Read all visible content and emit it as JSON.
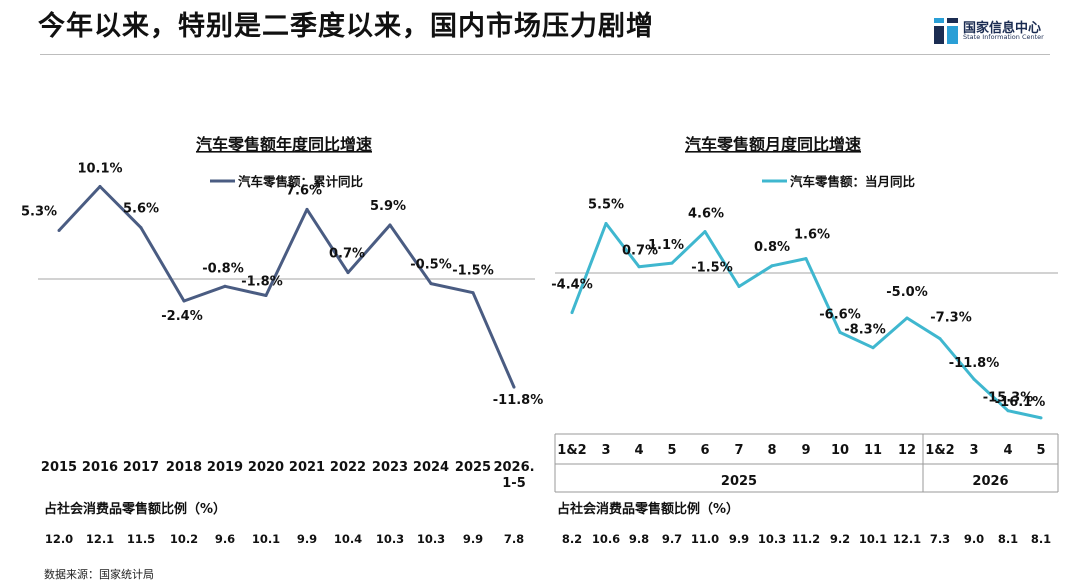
{
  "header": {
    "headline": "今年以来，特别是二季度以来，国内市场压力剧增",
    "logo_cn": "国家信息中心",
    "logo_en": "State Information Center"
  },
  "source_note": "数据来源：国家统计局",
  "colors": {
    "annual_line": "#4a5c82",
    "monthly_line": "#3fb7cf",
    "zero_line": "#a6a6a6"
  },
  "chart_data": [
    {
      "type": "line",
      "title": "汽车零售额年度同比增速",
      "series": [
        {
          "name": "汽车零售额：累计同比",
          "values": [
            5.3,
            10.1,
            5.6,
            -2.4,
            -0.8,
            -1.8,
            7.6,
            0.7,
            5.9,
            -0.5,
            -1.5,
            -11.8
          ]
        }
      ],
      "value_labels": [
        "5.3%",
        "10.1%",
        "5.6%",
        "-2.4%",
        "-0.8%",
        "-1.8%",
        "7.6%",
        "0.7%",
        "5.9%",
        "-0.5%",
        "-1.5%",
        "-11.8%"
      ],
      "categories": [
        "2015",
        "2016",
        "2017",
        "2018",
        "2019",
        "2020",
        "2021",
        "2022",
        "2023",
        "2024",
        "2025",
        "2026.\n1-5"
      ],
      "share_row_label": "占社会消费品零售额比例（%）",
      "share_values": [
        "12.0",
        "12.1",
        "11.5",
        "10.2",
        "9.6",
        "10.1",
        "9.9",
        "10.4",
        "10.3",
        "10.3",
        "9.9",
        "7.8"
      ],
      "legend_position": "top-center",
      "zero_line": true
    },
    {
      "type": "line",
      "title": "汽车零售额月度同比增速",
      "series": [
        {
          "name": "汽车零售额：当月同比",
          "values": [
            -4.4,
            5.5,
            0.7,
            1.1,
            4.6,
            -1.5,
            0.8,
            1.6,
            -6.6,
            -8.3,
            -5.0,
            -7.3,
            -11.8,
            -15.3,
            -16.1
          ]
        }
      ],
      "value_labels": [
        "-4.4%",
        "5.5%",
        "0.7%",
        "1.1%",
        "4.6%",
        "-1.5%",
        "0.8%",
        "1.6%",
        "-6.6%",
        "-8.3%",
        "-5.0%",
        "-7.3%",
        "-11.8%",
        "-15.3%",
        "-16.1%"
      ],
      "categories": [
        "1&2",
        "3",
        "4",
        "5",
        "6",
        "7",
        "8",
        "9",
        "10",
        "11",
        "12",
        "1&2",
        "3",
        "4",
        "5"
      ],
      "year_groups": [
        {
          "label": "2025",
          "count": 11
        },
        {
          "label": "2026",
          "count": 4
        }
      ],
      "share_row_label": "占社会消费品零售额比例（%）",
      "share_values": [
        "8.2",
        "10.6",
        "9.8",
        "9.7",
        "11.0",
        "9.9",
        "10.3",
        "11.2",
        "9.2",
        "10.1",
        "12.1",
        "7.3",
        "9.0",
        "8.1",
        "8.1"
      ],
      "legend_position": "top-center",
      "zero_line": true
    }
  ]
}
